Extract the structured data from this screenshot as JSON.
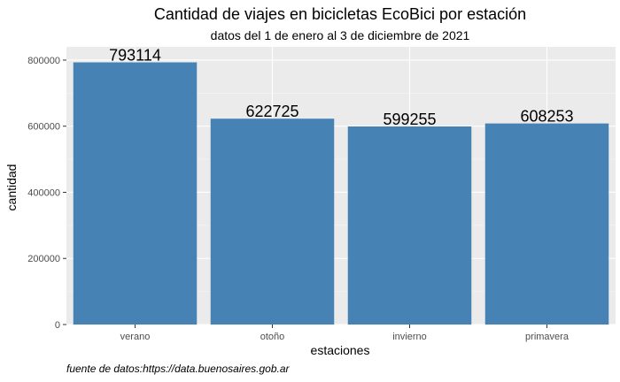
{
  "chart_data": {
    "type": "bar",
    "title": "Cantidad de viajes en bicicletas EcoBici por estación",
    "subtitle": "datos del 1 de enero al 3 de diciembre de 2021",
    "xlabel": "estaciones",
    "ylabel": "cantidad",
    "categories": [
      "verano",
      "otoño",
      "invierno",
      "primavera"
    ],
    "values": [
      793114,
      622725,
      599255,
      608253
    ],
    "data_labels": [
      "793114",
      "622725",
      "599255",
      "608253"
    ],
    "ylim": [
      0,
      840000
    ],
    "yticks": [
      0,
      200000,
      400000,
      600000,
      800000
    ],
    "ytick_labels": [
      "0",
      "200000",
      "400000",
      "600000",
      "800000"
    ],
    "caption": "fuente de datos:https://data.buenosaires.gob.ar",
    "grid": true,
    "legend": "none",
    "colors": {
      "bar": "#4682b4",
      "panel": "#ebebeb",
      "grid_major": "#ffffff",
      "grid_minor": "#f5f5f5"
    }
  }
}
